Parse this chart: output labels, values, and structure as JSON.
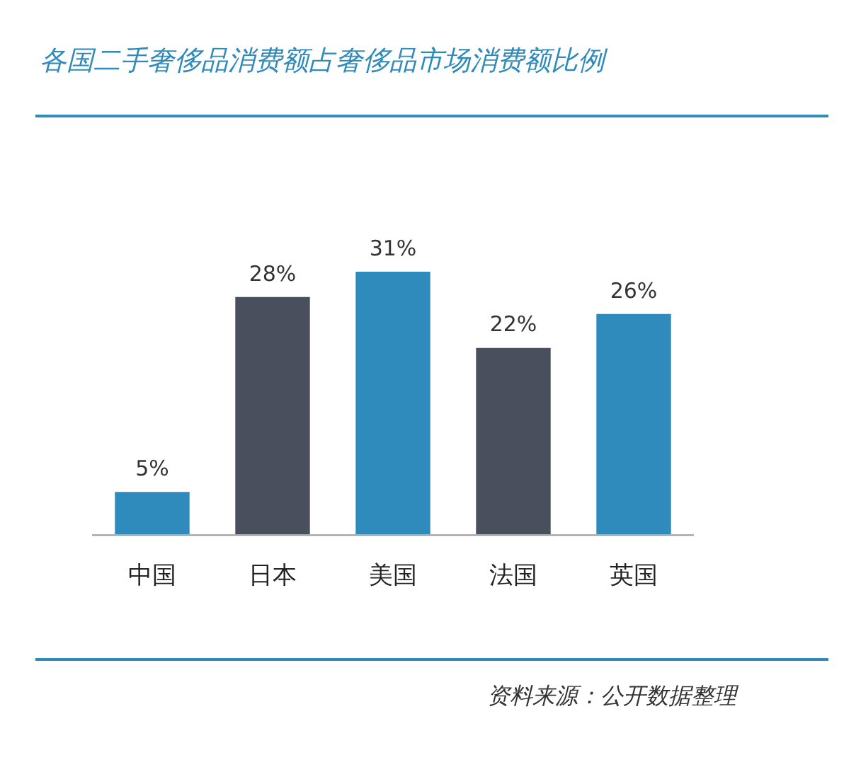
{
  "chart_data": {
    "type": "bar",
    "title": "各国二手奢侈品消费额占奢侈品市场消费额比例",
    "categories": [
      "中国",
      "日本",
      "美国",
      "法国",
      "英国"
    ],
    "values": [
      5,
      28,
      31,
      22,
      26
    ],
    "colors": [
      "#2f8bbb",
      "#4a4f5e",
      "#2f8bbb",
      "#4a4f5e",
      "#2f8bbb"
    ],
    "value_labels": [
      "5%",
      "28%",
      "31%",
      "22%",
      "26%"
    ],
    "annotations": [
      "资料来源：公开数据整理"
    ]
  }
}
